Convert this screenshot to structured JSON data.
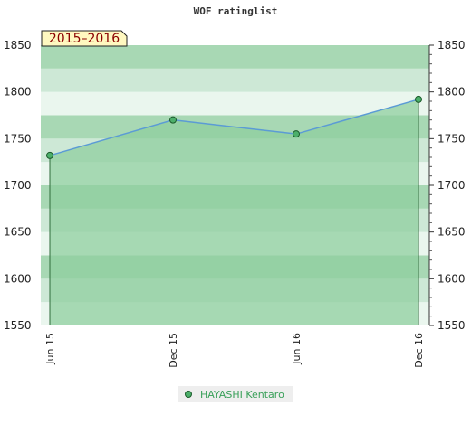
{
  "chart_data": {
    "type": "area",
    "title": "WOF ratinglist",
    "season_label": "2015–2016",
    "x": [
      "Jun 15",
      "Dec 15",
      "Jun 16",
      "Dec 16"
    ],
    "series": [
      {
        "name": "HAYASHI Kentaro",
        "values": [
          1732,
          1770,
          1755,
          1792
        ]
      }
    ],
    "ylim": [
      1550,
      1850
    ],
    "yticks": [
      1550,
      1600,
      1650,
      1700,
      1750,
      1800,
      1850
    ],
    "xlabel": "",
    "ylabel": "",
    "grid": false,
    "legend_position": "bottom",
    "colors": {
      "line": "#5b9bd5",
      "marker": "#4caf6a",
      "area_fill": "#8fcf9f",
      "band_light": "#eaf6ee",
      "band_mid": "#cde8d6",
      "band_dark": "#a8d8b4",
      "season_box": "#fff8c0"
    }
  }
}
